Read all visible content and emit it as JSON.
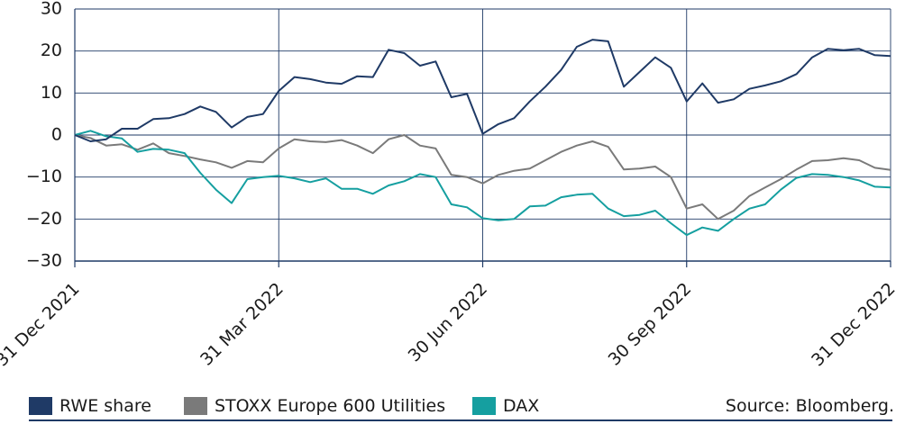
{
  "chart_data": {
    "type": "line",
    "title": "",
    "xlabel": "",
    "ylabel": "",
    "ylim": [
      -30,
      30
    ],
    "yticks": [
      30,
      20,
      10,
      0,
      -10,
      -20,
      -30
    ],
    "xticks": [
      "31 Dec 2021",
      "31 Mar 2022",
      "30 Jun 2022",
      "30 Sep 2022",
      "31 Dec 2022"
    ],
    "xlim": [
      0,
      52
    ],
    "grid": true,
    "legend_position": "bottom",
    "series": [
      {
        "name": "RWE share",
        "color": "#1f3a66",
        "values": [
          0,
          -1.5,
          -1,
          1.5,
          1.5,
          3.8,
          4,
          5,
          6.8,
          5.5,
          1.8,
          4.3,
          5,
          10.5,
          13.8,
          13.3,
          12.5,
          12.2,
          14,
          13.8,
          20.3,
          19.5,
          16.5,
          17.5,
          9,
          9.8,
          0.3,
          2.6,
          4,
          8,
          11.5,
          15.5,
          21,
          22.7,
          22.3,
          11.5,
          15,
          18.5,
          16,
          8,
          12.3,
          7.7,
          8.5,
          11,
          11.8,
          12.8,
          14.5,
          18.5,
          20.5,
          20.2,
          20.5,
          19,
          18.8
        ]
      },
      {
        "name": "STOXX Europe 600 Utilities",
        "color": "#7a7a7a",
        "values": [
          0,
          -0.7,
          -2.5,
          -2.2,
          -3.5,
          -2,
          -4.3,
          -5,
          -5.8,
          -6.5,
          -7.8,
          -6.2,
          -6.5,
          -3.2,
          -1,
          -1.5,
          -1.7,
          -1.2,
          -2.5,
          -4.3,
          -1,
          0,
          -2.5,
          -3.2,
          -9.5,
          -10,
          -11.5,
          -9.5,
          -8.5,
          -8,
          -6,
          -4,
          -2.5,
          -1.5,
          -2.8,
          -8.2,
          -8,
          -7.5,
          -10,
          -17.5,
          -16.5,
          -20,
          -18,
          -14.5,
          -12.5,
          -10.5,
          -8.2,
          -6.2,
          -6,
          -5.5,
          -6,
          -7.8,
          -8.3
        ]
      },
      {
        "name": "DAX",
        "color": "#159fa0",
        "values": [
          0,
          1,
          -0.3,
          -0.8,
          -4,
          -3.3,
          -3.5,
          -4.3,
          -9,
          -13,
          -16.2,
          -10.5,
          -10,
          -9.7,
          -10.3,
          -11.2,
          -10.3,
          -12.8,
          -12.8,
          -14,
          -12,
          -11,
          -9.3,
          -10,
          -16.5,
          -17.2,
          -19.8,
          -20.3,
          -20,
          -17,
          -16.8,
          -14.8,
          -14.2,
          -14,
          -17.5,
          -19.3,
          -19,
          -18,
          -21,
          -23.8,
          -22,
          -22.8,
          -20,
          -17.5,
          -16.5,
          -13,
          -10.2,
          -9.3,
          -9.5,
          -10,
          -10.8,
          -12.3,
          -12.5
        ]
      }
    ]
  },
  "source_note": "Source: Bloomberg."
}
